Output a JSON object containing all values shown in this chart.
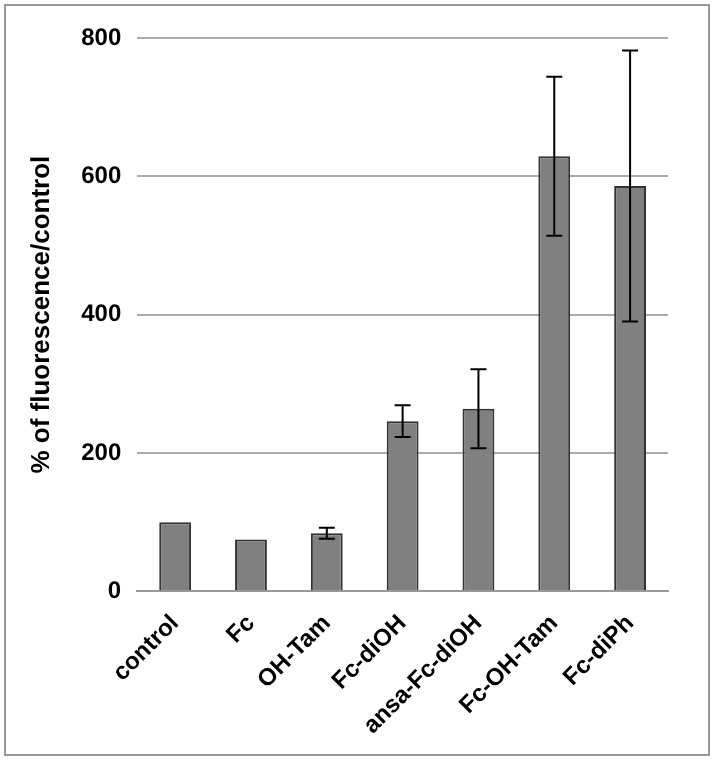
{
  "chart_data": {
    "type": "bar",
    "ylabel": "% of fluorescence/control",
    "categories": [
      "control",
      "Fc",
      "OH-Tam",
      "Fc-diOH",
      "ansa-Fc-diOH",
      "Fc-OH-Tam",
      "Fc-diPh"
    ],
    "values": [
      100,
      75,
      84,
      246,
      264,
      629,
      586
    ],
    "errors": [
      null,
      null,
      8,
      23,
      57,
      115,
      196
    ],
    "color": "#808080",
    "ylim": [
      0,
      800
    ],
    "yticks": [
      0,
      200,
      400,
      600,
      800
    ],
    "grid": "y",
    "legend": false
  }
}
